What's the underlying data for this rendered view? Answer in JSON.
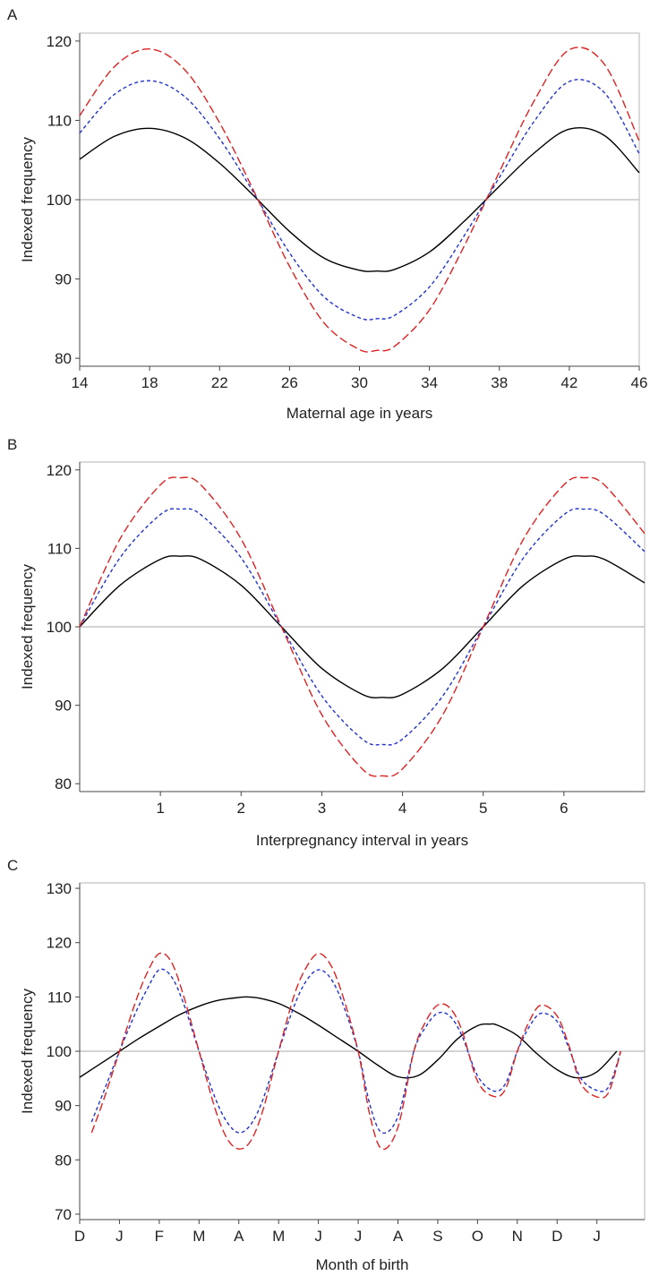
{
  "chart_data": [
    {
      "type": "line",
      "panel_label": "A",
      "xlabel": "Maternal age in years",
      "ylabel": "Indexed frequency",
      "xlim": [
        14,
        46
      ],
      "ylim": [
        79,
        121
      ],
      "x_ticks": [
        14,
        18,
        22,
        26,
        30,
        34,
        38,
        42,
        46
      ],
      "x_tick_labels": [
        "14",
        "18",
        "22",
        "26",
        "30",
        "34",
        "38",
        "42",
        "46"
      ],
      "y_ticks": [
        80,
        90,
        100,
        110,
        120
      ],
      "y_tick_labels": [
        "80",
        "90",
        "100",
        "110",
        "120"
      ],
      "reference_line": 100,
      "colors": {
        "solid": "#000000",
        "blue": "#2233cc",
        "red": "#dd2222",
        "reference": "#aaaaaa"
      },
      "series": [
        {
          "x": [
            14,
            16,
            18,
            20,
            22,
            24,
            26,
            28,
            30,
            31,
            32,
            34,
            36,
            38,
            40,
            42,
            44,
            46
          ],
          "values": [
            105.1,
            108.0,
            109.0,
            107.8,
            104.6,
            100.4,
            96.0,
            92.6,
            91.1,
            91.0,
            91.2,
            93.4,
            97.3,
            101.7,
            105.9,
            108.9,
            108.1,
            103.4
          ]
        },
        {
          "x": [
            14,
            16,
            18,
            20,
            22,
            24,
            26,
            28,
            30,
            31,
            32,
            34,
            36,
            38,
            40,
            42,
            44,
            46
          ],
          "values": [
            108.4,
            113.3,
            115.0,
            113.0,
            107.7,
            100.7,
            93.3,
            87.7,
            85.1,
            85.0,
            85.4,
            89.0,
            95.5,
            102.8,
            109.9,
            114.9,
            113.5,
            105.8
          ]
        },
        {
          "x": [
            14,
            16,
            18,
            20,
            22,
            24,
            26,
            28,
            30,
            31,
            32,
            34,
            36,
            38,
            40,
            42,
            44,
            46
          ],
          "values": [
            110.6,
            116.8,
            119.0,
            116.4,
            109.7,
            100.9,
            91.6,
            84.4,
            81.1,
            81.0,
            81.5,
            86.1,
            94.2,
            103.5,
            112.5,
            118.9,
            117.1,
            107.4
          ]
        }
      ]
    },
    {
      "type": "line",
      "panel_label": "B",
      "xlabel": "Interpregnancy interval in years",
      "ylabel": "Indexed frequency",
      "xlim": [
        0,
        7
      ],
      "ylim": [
        79,
        121
      ],
      "x_ticks": [
        1,
        2,
        3,
        4,
        5,
        6
      ],
      "x_tick_labels": [
        "1",
        "2",
        "3",
        "4",
        "5",
        "6"
      ],
      "y_ticks": [
        80,
        90,
        100,
        110,
        120
      ],
      "y_tick_labels": [
        "80",
        "90",
        "100",
        "110",
        "120"
      ],
      "reference_line": 100,
      "colors": {
        "solid": "#000000",
        "blue": "#2233cc",
        "red": "#dd2222",
        "reference": "#aaaaaa"
      },
      "series": [
        {
          "x": [
            0,
            0.5,
            1,
            1.25,
            1.5,
            2,
            2.5,
            3,
            3.5,
            3.75,
            4,
            4.5,
            5,
            5.5,
            6,
            6.25,
            6.5,
            7
          ],
          "values": [
            100.0,
            105.3,
            108.6,
            109.0,
            108.6,
            105.3,
            100.0,
            94.7,
            91.4,
            91.0,
            91.4,
            94.7,
            100.0,
            105.3,
            108.6,
            109.0,
            108.6,
            105.6
          ]
        },
        {
          "x": [
            0,
            0.5,
            1,
            1.25,
            1.5,
            2,
            2.5,
            3,
            3.5,
            3.75,
            4,
            4.5,
            5,
            5.5,
            6,
            6.25,
            6.5,
            7
          ],
          "values": [
            100.0,
            108.8,
            114.3,
            115.0,
            114.3,
            108.8,
            100.0,
            91.2,
            85.7,
            85.0,
            85.7,
            91.2,
            100.0,
            108.8,
            114.3,
            115.0,
            114.3,
            109.6
          ]
        },
        {
          "x": [
            0,
            0.5,
            1,
            1.25,
            1.5,
            2,
            2.5,
            3,
            3.5,
            3.75,
            4,
            4.5,
            5,
            5.5,
            6,
            6.25,
            6.5,
            7
          ],
          "values": [
            100.0,
            111.2,
            118.1,
            119.0,
            118.1,
            111.2,
            100.0,
            88.8,
            81.9,
            81.0,
            81.9,
            88.8,
            100.0,
            111.2,
            118.1,
            119.0,
            118.1,
            111.9
          ]
        }
      ]
    },
    {
      "type": "line",
      "panel_label": "C",
      "xlabel": "Month of birth",
      "ylabel": "Indexed frequency",
      "xlim": [
        0,
        14.2
      ],
      "ylim": [
        69,
        131
      ],
      "x_ticks": [
        0,
        1,
        2,
        3,
        4,
        5,
        6,
        7,
        8,
        9,
        10,
        11,
        12,
        13
      ],
      "x_tick_labels": [
        "D",
        "J",
        "F",
        "M",
        "A",
        "M",
        "J",
        "J",
        "A",
        "S",
        "O",
        "N",
        "D",
        "J"
      ],
      "y_ticks": [
        70,
        80,
        90,
        100,
        110,
        120,
        130
      ],
      "y_tick_labels": [
        "70",
        "80",
        "90",
        "100",
        "110",
        "120",
        "130"
      ],
      "reference_line": 100,
      "colors": {
        "solid": "#000000",
        "blue": "#2233cc",
        "red": "#dd2222",
        "reference": "#aaaaaa"
      },
      "series": [
        {
          "x": [
            0,
            0.5,
            1,
            1.5,
            2,
            2.5,
            3,
            3.5,
            4,
            4.2,
            4.5,
            5,
            5.5,
            6,
            6.5,
            7,
            7.5,
            8,
            8.5,
            9,
            9.5,
            10,
            10.3,
            10.5,
            11,
            11.5,
            12,
            12.5,
            13,
            13.5
          ],
          "values": [
            95.2,
            97.6,
            100.0,
            102.4,
            104.6,
            106.7,
            108.3,
            109.4,
            109.9,
            110.0,
            109.8,
            108.8,
            107.0,
            104.8,
            102.4,
            100.0,
            97.4,
            95.3,
            95.5,
            98.4,
            102.3,
            104.7,
            105.0,
            104.8,
            102.9,
            99.5,
            96.6,
            95.1,
            96.2,
            100.0
          ]
        },
        {
          "x": [
            0.3,
            0.6,
            1,
            1.4,
            1.7,
            2,
            2.3,
            2.6,
            3,
            3.4,
            3.7,
            4,
            4.3,
            4.6,
            5,
            5.4,
            5.7,
            6,
            6.3,
            6.6,
            7,
            7.3,
            7.6,
            8,
            8.4,
            8.7,
            9,
            9.3,
            9.6,
            10,
            10.4,
            10.7,
            11,
            11.3,
            11.6,
            12,
            12.3,
            12.6,
            13,
            13.3,
            13.6
          ],
          "values": [
            87.0,
            92.5,
            100.0,
            107.0,
            111.5,
            115.0,
            113.8,
            109.0,
            100.0,
            91.5,
            87.0,
            85.0,
            86.5,
            91.0,
            100.0,
            108.5,
            113.0,
            115.0,
            113.5,
            109.0,
            100.0,
            90.0,
            85.0,
            88.0,
            100.0,
            104.5,
            107.0,
            106.5,
            103.0,
            95.5,
            92.7,
            94.0,
            100.0,
            104.5,
            107.0,
            105.5,
            100.5,
            95.0,
            92.8,
            93.5,
            100.0
          ]
        },
        {
          "x": [
            0.3,
            0.6,
            1,
            1.4,
            1.7,
            2,
            2.3,
            2.6,
            3,
            3.4,
            3.7,
            4,
            4.3,
            4.6,
            5,
            5.4,
            5.7,
            6,
            6.3,
            6.6,
            7,
            7.3,
            7.6,
            8,
            8.4,
            8.7,
            9,
            9.3,
            9.6,
            10,
            10.4,
            10.7,
            11,
            11.3,
            11.6,
            12,
            12.3,
            12.6,
            13,
            13.3,
            13.6
          ],
          "values": [
            85.0,
            91.0,
            100.0,
            109.0,
            114.5,
            118.0,
            116.5,
            110.5,
            100.0,
            89.5,
            84.0,
            82.0,
            83.5,
            89.0,
            100.0,
            110.5,
            115.5,
            118.0,
            116.0,
            110.5,
            100.0,
            88.0,
            82.0,
            86.0,
            100.0,
            105.5,
            108.5,
            108.0,
            104.0,
            94.5,
            91.7,
            93.0,
            100.0,
            105.5,
            108.5,
            106.5,
            101.0,
            94.0,
            91.6,
            92.5,
            100.0
          ]
        }
      ]
    }
  ]
}
